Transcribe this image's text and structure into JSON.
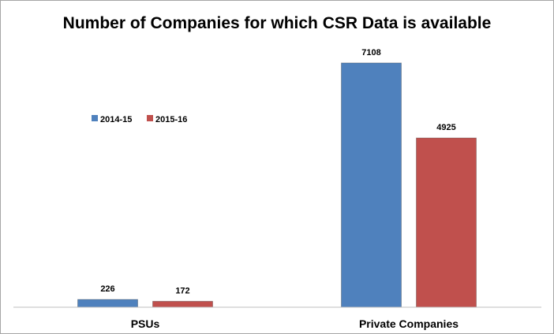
{
  "chart_data": {
    "type": "bar",
    "title": "Number of Companies for which CSR Data is available",
    "xlabel": "",
    "ylabel": "",
    "categories": [
      "PSUs",
      "Private Companies"
    ],
    "series": [
      {
        "name": "2014-15",
        "values": [
          226,
          7108
        ],
        "color": "#4f81bd"
      },
      {
        "name": "2015-16",
        "values": [
          172,
          4925
        ],
        "color": "#c0504d"
      }
    ],
    "ylim": [
      0,
      8000
    ],
    "grid": false,
    "y_axis_visible": false,
    "data_labels": true,
    "legend_position": "top-left"
  }
}
